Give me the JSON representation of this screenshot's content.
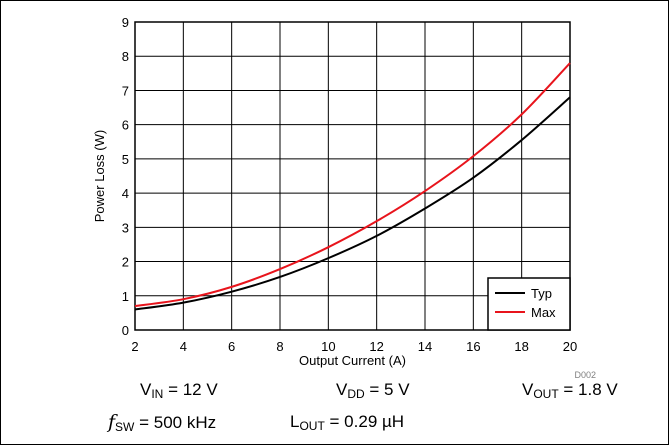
{
  "chart_data": {
    "type": "line",
    "xlabel": "Output Current (A)",
    "ylabel": "Power Loss (W)",
    "xlim": [
      2,
      20
    ],
    "ylim": [
      0,
      9
    ],
    "x_ticks": [
      2,
      4,
      6,
      8,
      10,
      12,
      14,
      16,
      18,
      20
    ],
    "y_ticks": [
      0,
      1,
      2,
      3,
      4,
      5,
      6,
      7,
      8,
      9
    ],
    "grid": true,
    "legend_position": "bottom-right",
    "series": [
      {
        "name": "Typ",
        "color": "#000000",
        "x": [
          2,
          4,
          6,
          8,
          10,
          12,
          14,
          16,
          18,
          20
        ],
        "y": [
          0.6,
          0.8,
          1.12,
          1.55,
          2.1,
          2.75,
          3.55,
          4.45,
          5.55,
          6.8
        ]
      },
      {
        "name": "Max",
        "color": "#e8141c",
        "x": [
          2,
          4,
          6,
          8,
          10,
          12,
          14,
          16,
          18,
          20
        ],
        "y": [
          0.7,
          0.9,
          1.26,
          1.78,
          2.42,
          3.18,
          4.06,
          5.08,
          6.3,
          7.8
        ]
      }
    ]
  },
  "figure_code": "D002",
  "conditions": {
    "vin": {
      "symbol": "V",
      "sub": "IN",
      "value": " = 12 V"
    },
    "vdd": {
      "symbol": "V",
      "sub": "DD",
      "value": " = 5 V"
    },
    "vout": {
      "symbol": "V",
      "sub": "OUT",
      "value": " = 1.8 V"
    },
    "fsw": {
      "symbol": "f",
      "sub": "SW",
      "value": " = 500 kHz"
    },
    "lout": {
      "symbol": "L",
      "sub": "OUT",
      "value": " = 0.29 µH"
    }
  }
}
